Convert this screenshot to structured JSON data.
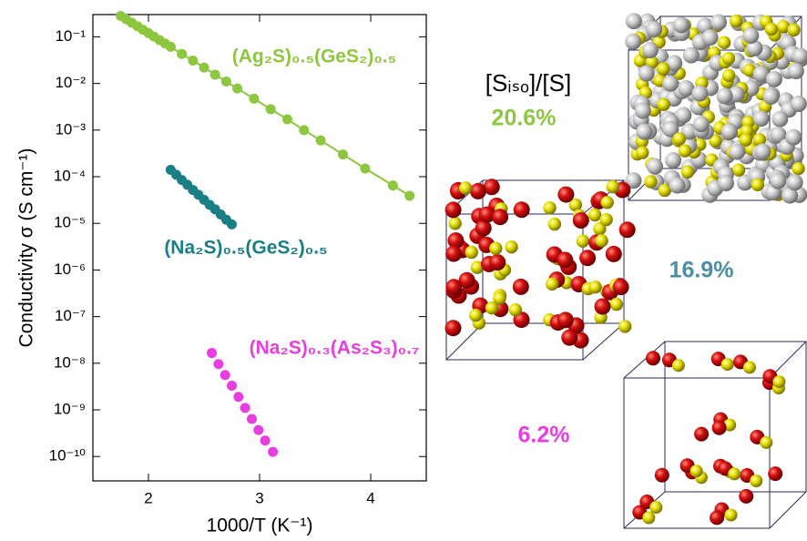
{
  "chart_data": {
    "type": "scatter",
    "xlabel": "1000/T (K⁻¹)",
    "ylabel": "Conductivity σ (S cm⁻¹)",
    "xlim": [
      1.5,
      4.5
    ],
    "xticks": [
      2,
      3,
      4
    ],
    "ylim": [
      3e-11,
      0.3
    ],
    "log_y": true,
    "yticks": [
      {
        "value": 0.1,
        "label": "10⁻¹"
      },
      {
        "value": 0.01,
        "label": "10⁻²"
      },
      {
        "value": 0.001,
        "label": "10⁻³"
      },
      {
        "value": 0.0001,
        "label": "10⁻⁴"
      },
      {
        "value": 1e-05,
        "label": "10⁻⁵"
      },
      {
        "value": 1e-06,
        "label": "10⁻⁶"
      },
      {
        "value": 1e-07,
        "label": "10⁻⁷"
      },
      {
        "value": 1e-08,
        "label": "10⁻⁸"
      },
      {
        "value": 1e-09,
        "label": "10⁻⁹"
      },
      {
        "value": 1e-10,
        "label": "10⁻¹⁰"
      }
    ],
    "series": [
      {
        "name": "(Ag₂S)₀.₅(GeS₂)₀.₅",
        "color": "#8dc63f",
        "line": true,
        "x": [
          1.75,
          1.8,
          1.85,
          1.9,
          1.95,
          2.0,
          2.05,
          2.1,
          2.15,
          2.2,
          2.3,
          2.4,
          2.5,
          2.6,
          2.7,
          2.8,
          2.95,
          3.1,
          3.25,
          3.4,
          3.55,
          3.75,
          3.95,
          4.2,
          4.35
        ],
        "values": [
          0.28,
          0.238,
          0.2,
          0.169,
          0.142,
          0.12,
          0.101,
          0.085,
          0.072,
          0.061,
          0.043,
          0.031,
          0.022,
          0.0154,
          0.011,
          0.0078,
          0.0047,
          0.0028,
          0.0017,
          0.001,
          0.0006,
          0.0003,
          0.00015,
          6.5e-05,
          3.9e-05
        ]
      },
      {
        "name": "(Na₂S)₀.₅(GeS₂)₀.₅",
        "color": "#1a7f85",
        "line": false,
        "x": [
          2.2,
          2.25,
          2.3,
          2.35,
          2.4,
          2.45,
          2.5,
          2.55,
          2.6,
          2.65,
          2.7,
          2.75
        ],
        "values": [
          0.00014,
          0.00011,
          8.5e-05,
          6.7e-05,
          5.2e-05,
          4.1e-05,
          3.2e-05,
          2.5e-05,
          2e-05,
          1.55e-05,
          1.2e-05,
          9.5e-06
        ]
      },
      {
        "name": "(Na₂S)₀.₃(As₂S₃)₀.₇",
        "color": "#e83ee0",
        "line": false,
        "x": [
          2.57,
          2.63,
          2.69,
          2.75,
          2.81,
          2.87,
          2.93,
          2.99,
          3.05,
          3.12
        ],
        "values": [
          1.66e-08,
          9.6e-09,
          5.6e-09,
          3.3e-09,
          1.9e-09,
          1.1e-09,
          6.4e-10,
          3.7e-10,
          2.2e-10,
          1.26e-10
        ]
      }
    ],
    "annotations": [
      {
        "text": "[Sᵢₛₒ]/[S]",
        "color": "#000000"
      },
      {
        "text": "20.6%",
        "color": "#8dc63f"
      },
      {
        "text": "16.9%",
        "color": "#4a8fa3"
      },
      {
        "text": "6.2%",
        "color": "#e83ee0"
      }
    ]
  }
}
